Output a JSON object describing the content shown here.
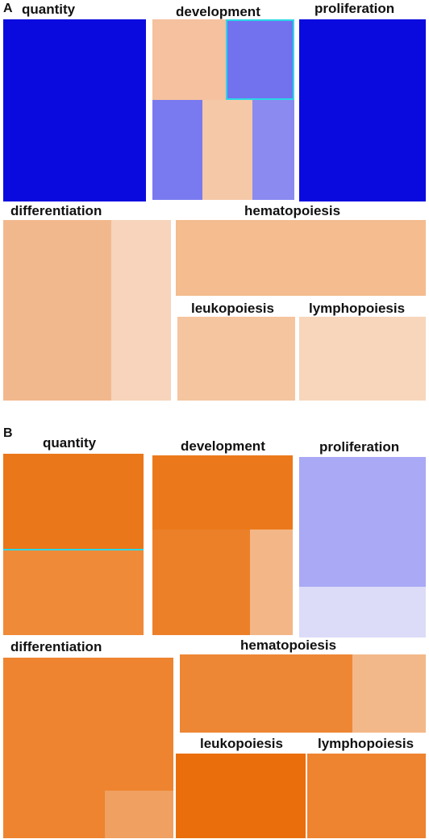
{
  "panels": [
    {
      "letter": "A",
      "groups": [
        {
          "name": "quantity",
          "cells": [
            {
              "color": "#0a0adf"
            },
            {
              "color": "#0a0adf"
            }
          ]
        },
        {
          "name": "development",
          "cells": [
            {
              "color": "#f5c19e"
            },
            {
              "color": "#7272ee"
            },
            {
              "color": "#7a7af0"
            },
            {
              "color": "#f5c8a8"
            },
            {
              "color": "#8a8af0"
            }
          ]
        },
        {
          "name": "proliferation",
          "cells": [
            {
              "color": "#0a0adf"
            },
            {
              "color": "#0a0adf"
            }
          ]
        },
        {
          "name": "differentiation",
          "cells": [
            {
              "color": "#f2b88d"
            },
            {
              "color": "#f7d4bb"
            }
          ]
        },
        {
          "name": "hematopoiesis",
          "cells": [
            {
              "color": "#f4bc8f"
            }
          ]
        },
        {
          "name": "leukopoiesis",
          "cells": [
            {
              "color": "#f5c59f"
            }
          ]
        },
        {
          "name": "lymphopoiesis",
          "cells": [
            {
              "color": "#f7d6bc"
            }
          ]
        }
      ]
    },
    {
      "letter": "B",
      "groups": [
        {
          "name": "quantity",
          "cells": [
            {
              "color": "#ea7719"
            },
            {
              "color": "#ef8a38"
            }
          ]
        },
        {
          "name": "development",
          "cells": [
            {
              "color": "#eb791b"
            },
            {
              "color": "#ec8029"
            },
            {
              "color": "#f3b686"
            }
          ]
        },
        {
          "name": "proliferation",
          "cells": [
            {
              "color": "#a9a9f5"
            },
            {
              "color": "#dcdcf8"
            }
          ]
        },
        {
          "name": "differentiation",
          "cells": [
            {
              "color": "#ee8430"
            },
            {
              "color": "#ee8430"
            },
            {
              "color": "#ee8430"
            },
            {
              "color": "#f0a060"
            }
          ]
        },
        {
          "name": "hematopoiesis",
          "cells": [
            {
              "color": "#ee8735"
            },
            {
              "color": "#f3b889"
            }
          ]
        },
        {
          "name": "leukopoiesis",
          "cells": [
            {
              "color": "#ea6e0c"
            }
          ]
        },
        {
          "name": "lymphopoiesis",
          "cells": [
            {
              "color": "#ee8330"
            }
          ]
        }
      ]
    }
  ]
}
